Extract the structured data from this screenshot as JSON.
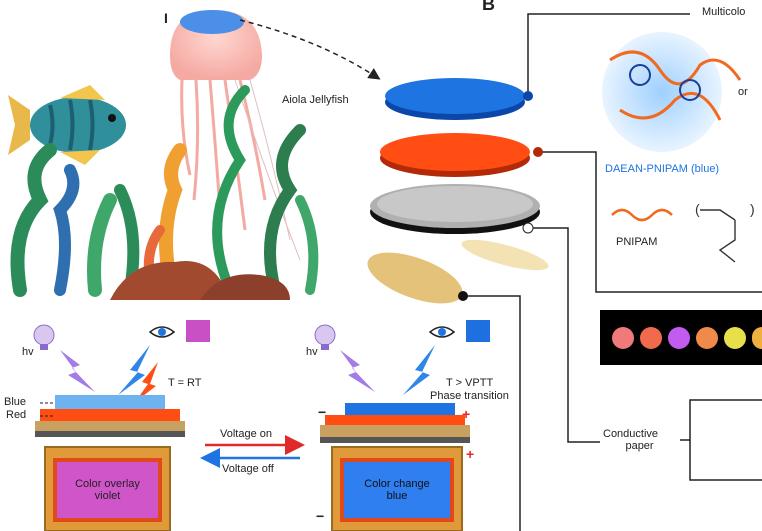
{
  "panel_b_letter": "B",
  "section_i": "I",
  "creature_label": "Aiola Jellyfish",
  "multicolor_label": "Multicolo",
  "polymer_label": "DAEAN-PNIPAM (blue)",
  "or_label": "or",
  "pnipam_label": "PNIPAM",
  "conductive_paper_label": [
    "Conductive",
    "paper"
  ],
  "device_left": {
    "hv": "hv",
    "blue": "Blue",
    "red": "Red",
    "temp": "T = RT",
    "overlay_line1": "Color overlay",
    "overlay_line2": "violet",
    "indicator_color": "#c94fc4"
  },
  "device_right": {
    "hv": "hv",
    "temp": "T > VPTT",
    "phase": "Phase transition",
    "change_line1": "Color change",
    "change_line2": "blue",
    "plus": "+",
    "minus": "−",
    "indicator_color": "#1e6fe0"
  },
  "voltage_on": "Voltage on",
  "voltage_off": "Voltage off",
  "dots": [
    "#f07a7a",
    "#f06a4e",
    "#c25cf0",
    "#f08a4a",
    "#e8e04a",
    "#f0b040"
  ]
}
